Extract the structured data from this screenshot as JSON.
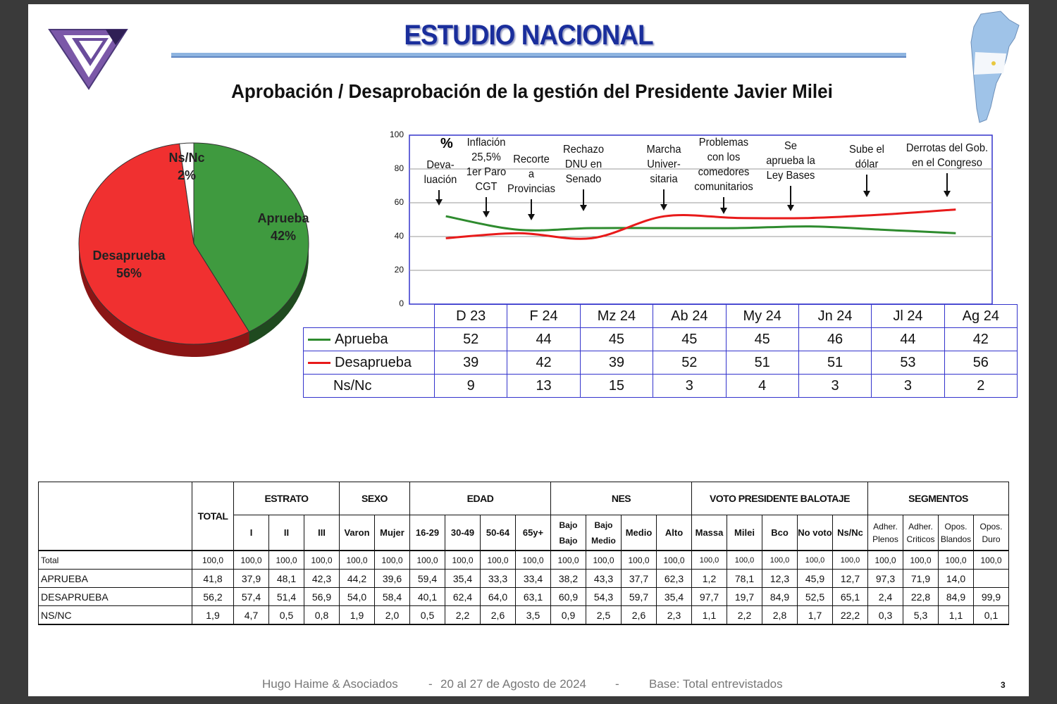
{
  "header": {
    "title": "ESTUDIO NACIONAL",
    "subtitle": "Aprobación / Desaprobación de la gestión del Presidente Javier Milei",
    "logo_icon": "triangle-logo-icon",
    "map_icon": "argentina-map-icon"
  },
  "chart_data": [
    {
      "type": "pie",
      "slices": [
        {
          "label": "Aprueba",
          "value": 42,
          "value_label": "42%",
          "color": "#3f9a3f"
        },
        {
          "label": "Desaprueba",
          "value": 56,
          "value_label": "56%",
          "color": "#f03030"
        },
        {
          "label": "Ns/Nc",
          "value": 2,
          "value_label": "2%",
          "color": "#ffffff"
        }
      ]
    },
    {
      "type": "line",
      "unit_label": "%",
      "categories": [
        "D 23",
        "F 24",
        "Mz 24",
        "Ab 24",
        "My 24",
        "Jn 24",
        "Jl 24",
        "Ag 24"
      ],
      "ylim": [
        0,
        100
      ],
      "yticks": [
        "0",
        "20",
        "40",
        "60",
        "80",
        "100"
      ],
      "grid": true,
      "series": [
        {
          "name": "Aprueba",
          "color": "#2e8b2e",
          "values": [
            52,
            44,
            45,
            45,
            45,
            46,
            44,
            42
          ],
          "labels": [
            "52",
            "44",
            "45",
            "45",
            "45",
            "46",
            "44",
            "42"
          ]
        },
        {
          "name": "Desaprueba",
          "color": "#e81a1a",
          "values": [
            39,
            42,
            39,
            52,
            51,
            51,
            53,
            56
          ],
          "labels": [
            "39",
            "42",
            "39",
            "52",
            "51",
            "51",
            "53",
            "56"
          ]
        },
        {
          "name": "Ns/Nc",
          "values": [
            9,
            13,
            15,
            3,
            4,
            3,
            3,
            2
          ],
          "labels": [
            "9",
            "13",
            "15",
            "3",
            "4",
            "3",
            "3",
            "2"
          ]
        }
      ],
      "annotations": [
        {
          "lines": [
            "Deva-",
            "luación"
          ]
        },
        {
          "lines": [
            "Inflación",
            "25,5%",
            "1er Paro",
            "CGT"
          ]
        },
        {
          "lines": [
            "Recorte",
            "a",
            "Provincias"
          ]
        },
        {
          "lines": [
            "Rechazo",
            "DNU en",
            "Senado"
          ]
        },
        {
          "lines": [
            "Marcha",
            "Univer-",
            "sitaria"
          ]
        },
        {
          "lines": [
            "Problemas",
            "con los",
            "comedores",
            "comunitarios"
          ]
        },
        {
          "lines": [
            "Se",
            "aprueba la",
            "Ley Bases"
          ]
        },
        {
          "lines": [
            "Sube el",
            "dólar"
          ]
        },
        {
          "lines": [
            "Derrotas del Gob.",
            "en el Congreso"
          ]
        }
      ]
    },
    {
      "type": "table",
      "groups": [
        {
          "label": "TOTAL",
          "cols": [
            ""
          ]
        },
        {
          "label": "ESTRATO",
          "cols": [
            "I",
            "II",
            "III"
          ]
        },
        {
          "label": "SEXO",
          "cols": [
            "Varon",
            "Mujer"
          ]
        },
        {
          "label": "EDAD",
          "cols": [
            "16-29",
            "30-49",
            "50-64",
            "65y+"
          ]
        },
        {
          "label": "NES",
          "cols": [
            "Bajo Bajo",
            "Bajo Medio",
            "Medio",
            "Alto"
          ]
        },
        {
          "label": "VOTO PRESIDENTE BALOTAJE",
          "cols": [
            "Massa",
            "Milei",
            "Bco",
            "No voto",
            "Ns/Nc"
          ]
        },
        {
          "label": "SEGMENTOS",
          "cols": [
            "Adher. Plenos",
            "Adher. Criticos",
            "Opos. Blandos",
            "Opos. Duro"
          ]
        }
      ],
      "rows": [
        {
          "label": "Total",
          "values": [
            "100,0",
            "100,0",
            "100,0",
            "100,0",
            "100,0",
            "100,0",
            "100,0",
            "100,0",
            "100,0",
            "100,0",
            "100,0",
            "100,0",
            "100,0",
            "100,0",
            "100,0",
            "100,0",
            "100,0",
            "100,0",
            "100,0",
            "100,0",
            "100,0",
            "100,0",
            "100,0"
          ]
        },
        {
          "label": "APRUEBA",
          "values": [
            "41,8",
            "37,9",
            "48,1",
            "42,3",
            "44,2",
            "39,6",
            "59,4",
            "35,4",
            "33,3",
            "33,4",
            "38,2",
            "43,3",
            "37,7",
            "62,3",
            "1,2",
            "78,1",
            "12,3",
            "45,9",
            "12,7",
            "97,3",
            "71,9",
            "14,0",
            ""
          ]
        },
        {
          "label": "DESAPRUEBA",
          "values": [
            "56,2",
            "57,4",
            "51,4",
            "56,9",
            "54,0",
            "58,4",
            "40,1",
            "62,4",
            "64,0",
            "63,1",
            "60,9",
            "54,3",
            "59,7",
            "35,4",
            "97,7",
            "19,7",
            "84,9",
            "52,5",
            "65,1",
            "2,4",
            "22,8",
            "84,9",
            "99,9"
          ]
        },
        {
          "label": "NS/NC",
          "values": [
            "1,9",
            "4,7",
            "0,5",
            "0,8",
            "1,9",
            "2,0",
            "0,5",
            "2,2",
            "2,6",
            "3,5",
            "0,9",
            "2,5",
            "2,6",
            "2,3",
            "1,1",
            "2,2",
            "2,8",
            "1,7",
            "22,2",
            "0,3",
            "5,3",
            "1,1",
            "0,1"
          ]
        }
      ]
    }
  ],
  "footer": {
    "firm": "Hugo Haime & Asociados",
    "sep1": "-",
    "dates": "20 al 27 de Agosto  de 2024",
    "sep2": "-",
    "base": "Base: Total entrevistados",
    "page": "3"
  }
}
